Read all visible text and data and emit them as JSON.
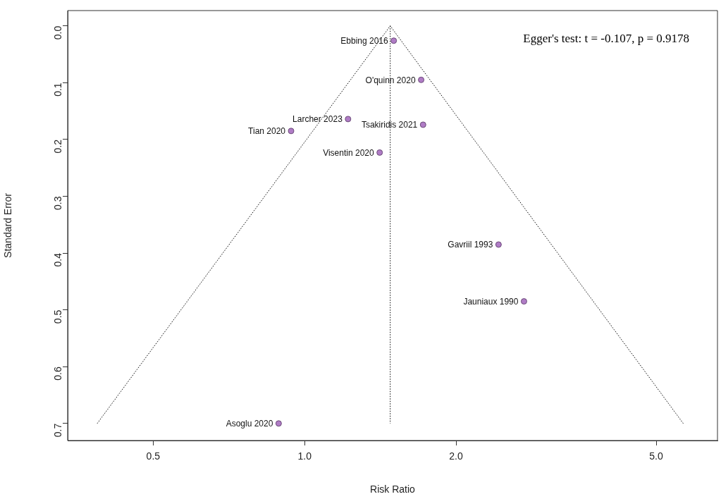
{
  "chart_data": {
    "type": "scatter",
    "xlabel": "Risk Ratio",
    "ylabel": "Standard Error",
    "log": "x",
    "legend": false,
    "grid": false,
    "xlim": [
      0.338,
      6.62
    ],
    "ylim": [
      0.73,
      -0.027
    ],
    "xticks": [
      {
        "value": 0.5,
        "label": "0.5"
      },
      {
        "value": 1,
        "label": "1.0"
      },
      {
        "value": 2,
        "label": "2.0"
      },
      {
        "value": 5,
        "label": "5.0"
      }
    ],
    "yticks": [
      {
        "value": 0,
        "label": "0.0"
      },
      {
        "value": 0.1,
        "label": "0.1"
      },
      {
        "value": 0.2,
        "label": "0.2"
      },
      {
        "value": 0.3,
        "label": "0.3"
      },
      {
        "value": 0.4,
        "label": "0.4"
      },
      {
        "value": 0.5,
        "label": "0.5"
      },
      {
        "value": 0.6,
        "label": "0.6"
      },
      {
        "value": 0.7,
        "label": "0.7"
      }
    ],
    "series": [
      {
        "type": "line",
        "line_style": "dotted",
        "color": "#000000",
        "x": [
          0.387,
          1.48,
          5.66
        ],
        "values": [
          0.7,
          0,
          0.7
        ]
      },
      {
        "type": "line",
        "line_style": "dotted",
        "color": "#000000",
        "x": [
          1.48,
          1.48
        ],
        "values": [
          0,
          0.7
        ]
      },
      {
        "marker": "circle",
        "color": "#b07cc6",
        "x": [
          1.504,
          1.705,
          1.22,
          1.72,
          0.94,
          1.41,
          2.43,
          2.73,
          0.888
        ],
        "values": [
          0.026,
          0.095,
          0.164,
          0.174,
          0.185,
          0.223,
          0.385,
          0.485,
          0.7
        ]
      }
    ],
    "annotations": [
      {
        "text": "Ebbing 2016",
        "x": 1.504,
        "y": 0.026
      },
      {
        "text": "O'quinn 2020",
        "x": 1.705,
        "y": 0.095
      },
      {
        "text": "Larcher 2023",
        "x": 1.22,
        "y": 0.164
      },
      {
        "text": "Tsakiridis 2021",
        "x": 1.72,
        "y": 0.174
      },
      {
        "text": "Tian 2020",
        "x": 0.94,
        "y": 0.185
      },
      {
        "text": "Visentin 2020",
        "x": 1.41,
        "y": 0.223
      },
      {
        "text": "Gavriil 1993",
        "x": 2.43,
        "y": 0.385
      },
      {
        "text": "Jauniaux 1990",
        "x": 2.73,
        "y": 0.485
      },
      {
        "text": "Asoglu 2020",
        "x": 0.888,
        "y": 0.7
      },
      "Egger's test: t = -0.107, p = 0.9178"
    ]
  }
}
